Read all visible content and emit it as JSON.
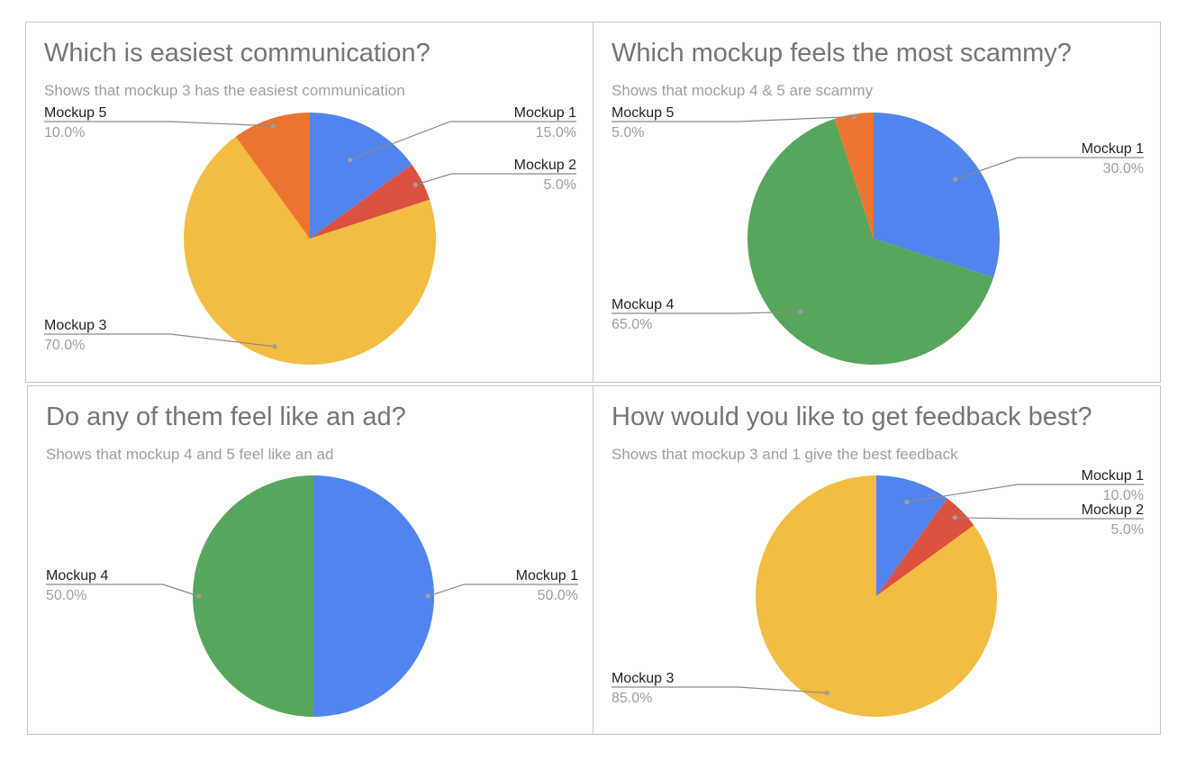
{
  "colors": {
    "mockup1": "#5185ed",
    "mockup2": "#dc5140",
    "mockup3": "#f2bd42",
    "mockup4": "#58a65c",
    "mockup5": "#eb7430"
  },
  "chart_data": [
    {
      "type": "pie",
      "title": "Which is easiest communication?",
      "subtitle": "Shows that mockup 3 has the easiest communication",
      "slices": [
        {
          "label": "Mockup 1",
          "value": 15.0,
          "pct_label": "15.0%",
          "color_key": "mockup1"
        },
        {
          "label": "Mockup 2",
          "value": 5.0,
          "pct_label": "5.0%",
          "color_key": "mockup2"
        },
        {
          "label": "Mockup 3",
          "value": 70.0,
          "pct_label": "70.0%",
          "color_key": "mockup3"
        },
        {
          "label": "Mockup 5",
          "value": 10.0,
          "pct_label": "10.0%",
          "color_key": "mockup5"
        }
      ]
    },
    {
      "type": "pie",
      "title": "Which mockup feels the most scammy?",
      "subtitle": "Shows that mockup 4 & 5 are scammy",
      "slices": [
        {
          "label": "Mockup 1",
          "value": 30.0,
          "pct_label": "30.0%",
          "color_key": "mockup1"
        },
        {
          "label": "Mockup 4",
          "value": 65.0,
          "pct_label": "65.0%",
          "color_key": "mockup4"
        },
        {
          "label": "Mockup 5",
          "value": 5.0,
          "pct_label": "5.0%",
          "color_key": "mockup5"
        }
      ]
    },
    {
      "type": "pie",
      "title": "Do any of them feel like an ad?",
      "subtitle": "Shows that mockup 4 and 5 feel like an ad",
      "slices": [
        {
          "label": "Mockup 1",
          "value": 50.0,
          "pct_label": "50.0%",
          "color_key": "mockup1"
        },
        {
          "label": "Mockup 4",
          "value": 50.0,
          "pct_label": "50.0%",
          "color_key": "mockup4"
        }
      ]
    },
    {
      "type": "pie",
      "title": "How would you like to get feedback best?",
      "subtitle": "Shows that mockup 3 and 1 give the best feedback",
      "slices": [
        {
          "label": "Mockup 1",
          "value": 10.0,
          "pct_label": "10.0%",
          "color_key": "mockup1"
        },
        {
          "label": "Mockup 2",
          "value": 5.0,
          "pct_label": "5.0%",
          "color_key": "mockup2"
        },
        {
          "label": "Mockup 3",
          "value": 85.0,
          "pct_label": "85.0%",
          "color_key": "mockup3"
        }
      ]
    }
  ]
}
